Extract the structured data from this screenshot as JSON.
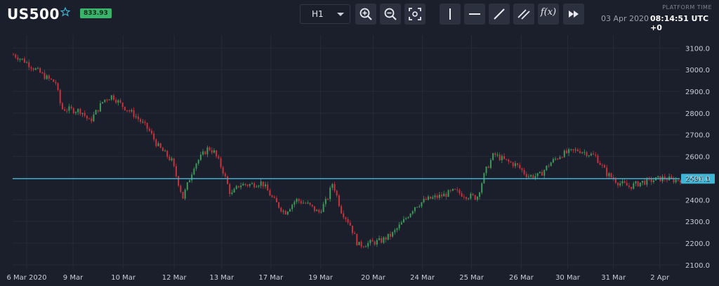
{
  "header": {
    "symbol": "US500",
    "price_badge": "833.93",
    "timeframe": "H1",
    "platform_time_label": "PLATFORM TIME",
    "platform_date": "03 Apr 2020",
    "platform_time": "08:14:51 UTC +0"
  },
  "toolbar": {
    "buttons": [
      "zoom-in-icon",
      "zoom-out-icon",
      "fit-screen-icon",
      "vertical-line-icon",
      "horizontal-line-icon",
      "trend-line-icon",
      "parallel-channel-icon",
      "indicators-icon",
      "fast-forward-icon"
    ],
    "indicators_label": "f(x)"
  },
  "colors": {
    "background": "#1b1f2b",
    "up_candle": "#3d9a5a",
    "down_candle": "#c8323c",
    "price_line": "#3fb6d6",
    "badge_green": "#3bb46b"
  },
  "chart_data": {
    "type": "candlestick",
    "timeframe": "H1",
    "current_price": 2497.1,
    "current_price_label": "2497.1",
    "ylim": [
      2080,
      3140
    ],
    "y_ticks": [
      2100,
      2200,
      2300,
      2400,
      2500,
      2600,
      2700,
      2800,
      2900,
      3000,
      3100
    ],
    "y_tick_labels": [
      "2100.0",
      "2200.0",
      "2300.0",
      "2400.0",
      "2500.0",
      "2600.0",
      "2700.0",
      "2800.0",
      "2900.0",
      "3000.0",
      "3100.0"
    ],
    "x_labels": [
      "6 Mar 2020",
      "9 Mar",
      "10 Mar",
      "12 Mar",
      "13 Mar",
      "17 Mar",
      "19 Mar",
      "20 Mar",
      "24 Mar",
      "25 Mar",
      "26 Mar",
      "30 Mar",
      "31 Mar",
      "2 Apr"
    ],
    "x_label_fracs": [
      0.0,
      0.082,
      0.171,
      0.261,
      0.345,
      0.432,
      0.52,
      0.613,
      0.7,
      0.787,
      0.875,
      0.957,
      1.038,
      1.12
    ],
    "price_path": [
      [
        0.0,
        3070
      ],
      [
        0.02,
        3040
      ],
      [
        0.04,
        3000
      ],
      [
        0.06,
        2960
      ],
      [
        0.075,
        2940
      ],
      [
        0.085,
        2820
      ],
      [
        0.12,
        2810
      ],
      [
        0.135,
        2760
      ],
      [
        0.16,
        2860
      ],
      [
        0.175,
        2880
      ],
      [
        0.19,
        2840
      ],
      [
        0.215,
        2790
      ],
      [
        0.24,
        2720
      ],
      [
        0.255,
        2650
      ],
      [
        0.28,
        2580
      ],
      [
        0.3,
        2410
      ],
      [
        0.32,
        2560
      ],
      [
        0.345,
        2640
      ],
      [
        0.355,
        2620
      ],
      [
        0.37,
        2540
      ],
      [
        0.385,
        2420
      ],
      [
        0.4,
        2470
      ],
      [
        0.42,
        2470
      ],
      [
        0.44,
        2480
      ],
      [
        0.46,
        2400
      ],
      [
        0.48,
        2340
      ],
      [
        0.5,
        2400
      ],
      [
        0.52,
        2380
      ],
      [
        0.54,
        2340
      ],
      [
        0.555,
        2400
      ],
      [
        0.565,
        2480
      ],
      [
        0.58,
        2350
      ],
      [
        0.595,
        2290
      ],
      [
        0.61,
        2190
      ],
      [
        0.63,
        2200
      ],
      [
        0.65,
        2210
      ],
      [
        0.67,
        2240
      ],
      [
        0.69,
        2300
      ],
      [
        0.71,
        2370
      ],
      [
        0.73,
        2400
      ],
      [
        0.76,
        2420
      ],
      [
        0.78,
        2440
      ],
      [
        0.8,
        2420
      ],
      [
        0.82,
        2410
      ],
      [
        0.835,
        2530
      ],
      [
        0.85,
        2610
      ],
      [
        0.87,
        2580
      ],
      [
        0.89,
        2560
      ],
      [
        0.91,
        2510
      ],
      [
        0.93,
        2510
      ],
      [
        0.95,
        2570
      ],
      [
        0.97,
        2610
      ],
      [
        1.0,
        2630
      ],
      [
        1.03,
        2600
      ],
      [
        1.05,
        2520
      ],
      [
        1.07,
        2480
      ],
      [
        1.09,
        2460
      ],
      [
        1.11,
        2480
      ],
      [
        1.13,
        2490
      ],
      [
        1.15,
        2500
      ],
      [
        1.17,
        2490
      ],
      [
        1.18,
        2495
      ]
    ]
  }
}
